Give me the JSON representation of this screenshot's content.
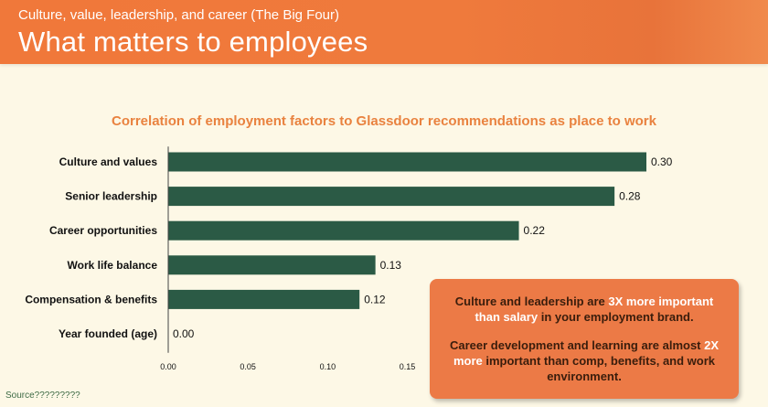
{
  "header": {
    "subtitle": "Culture, value, leadership, and career (The Big Four)",
    "title": "What matters to employees"
  },
  "chart_data": {
    "type": "bar",
    "orientation": "horizontal",
    "title": "Correlation of employment factors to Glassdoor recommendations as place to work",
    "categories": [
      "Culture and values",
      "Senior leadership",
      "Career opportunities",
      "Work life balance",
      "Compensation & benefits",
      "Year founded (age)"
    ],
    "values": [
      0.3,
      0.28,
      0.22,
      0.13,
      0.12,
      0.0
    ],
    "value_labels": [
      "0.30",
      "0.28",
      "0.22",
      "0.13",
      "0.12",
      "0.00"
    ],
    "xticks": [
      0.0,
      0.05,
      0.1,
      0.15
    ],
    "xtick_labels": [
      "0.00",
      "0.05",
      "0.10",
      "0.15"
    ],
    "xlim": [
      0,
      0.3
    ],
    "bar_color": "#2b5a45",
    "title_color": "#e9823f",
    "grid": false
  },
  "callout": {
    "p1_a": "Culture and leadership are ",
    "p1_b": "3X more important",
    "p1_c": " than salary",
    "p1_d": " in your employment brand.",
    "p2_a": "Career development and learning are almost ",
    "p2_b": "2X more",
    "p2_c": " important than comp, benefits, and work environment.",
    "bg_color": "#ec7a46",
    "highlight_color": "#ffffff"
  },
  "source": "Source?????????"
}
